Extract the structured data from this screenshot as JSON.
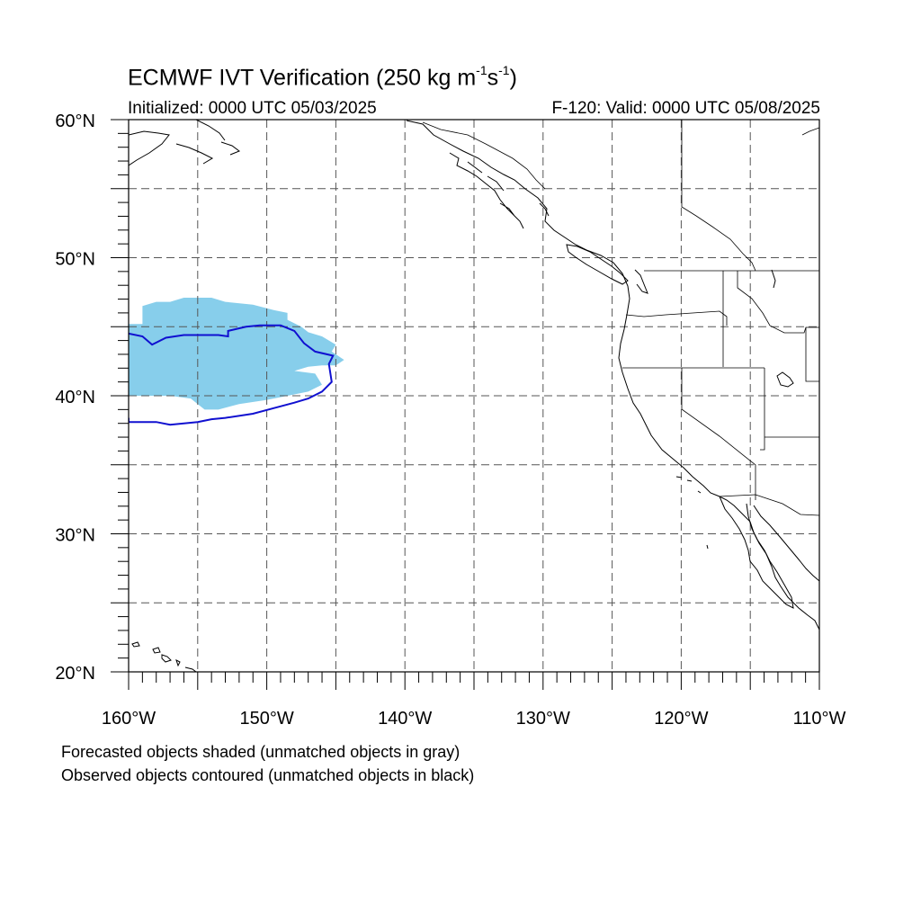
{
  "title": {
    "prefix": "ECMWF IVT Verification (250 kg m",
    "sup1": "-1",
    "mid": "s",
    "sup2": "-1",
    "suffix": ")"
  },
  "initialized": "Initialized: 0000 UTC 05/03/2025",
  "valid": "F-120: Valid: 0000 UTC 05/08/2025",
  "lat_labels": [
    "60°N",
    "50°N",
    "40°N",
    "30°N",
    "20°N"
  ],
  "lon_labels": [
    "160°W",
    "150°W",
    "140°W",
    "130°W",
    "120°W",
    "110°W"
  ],
  "notes": [
    "Forecasted objects shaded (unmatched objects in gray)",
    "Observed objects contoured (unmatched objects in black)"
  ],
  "colors": {
    "forecast_matched": "#87ceeb",
    "observed_matched": "#1010d0",
    "coastline": "#000000",
    "grid": "#555555"
  },
  "chart_data": {
    "type": "map",
    "projection": "cylindrical-equidistant",
    "lon_range": [
      -160,
      -110
    ],
    "lat_range": [
      20,
      60
    ],
    "gridlines": "dashed every 5 degrees",
    "forecast_object": {
      "status": "matched",
      "shading": "forecast_matched",
      "outline": [
        [
          -160,
          45.2
        ],
        [
          -159,
          45.2
        ],
        [
          -159,
          46.5
        ],
        [
          -158,
          46.8
        ],
        [
          -157,
          46.8
        ],
        [
          -156,
          47.1
        ],
        [
          -154,
          47.1
        ],
        [
          -153,
          46.8
        ],
        [
          -151,
          46.6
        ],
        [
          -149.5,
          46.2
        ],
        [
          -148.5,
          46
        ],
        [
          -148.5,
          45.5
        ],
        [
          -147.5,
          45
        ],
        [
          -147,
          44.6
        ],
        [
          -146,
          44.3
        ],
        [
          -145,
          43.7
        ],
        [
          -145.3,
          43.2
        ],
        [
          -144.4,
          42.6
        ],
        [
          -145,
          42.2
        ],
        [
          -146,
          42.2
        ],
        [
          -147,
          42.1
        ],
        [
          -148,
          41.8
        ],
        [
          -146.5,
          41.6
        ],
        [
          -146,
          40.8
        ],
        [
          -147,
          40.3
        ],
        [
          -148,
          40.1
        ],
        [
          -150,
          39.7
        ],
        [
          -152,
          39.4
        ],
        [
          -153.5,
          39.0
        ],
        [
          -154.5,
          39.0
        ],
        [
          -155.5,
          39.8
        ],
        [
          -157,
          40.0
        ],
        [
          -158.5,
          40.0
        ],
        [
          -160,
          40.0
        ]
      ]
    },
    "observed_object": {
      "status": "matched",
      "contour": "observed_matched",
      "outline": [
        [
          -160,
          44.5
        ],
        [
          -159,
          44.3
        ],
        [
          -158.3,
          43.7
        ],
        [
          -157.3,
          44.2
        ],
        [
          -156,
          44.4
        ],
        [
          -155,
          44.4
        ],
        [
          -153.5,
          44.4
        ],
        [
          -152.8,
          44.3
        ],
        [
          -152.8,
          44.7
        ],
        [
          -151.5,
          45.0
        ],
        [
          -150.5,
          45.1
        ],
        [
          -149,
          45.1
        ],
        [
          -148,
          44.7
        ],
        [
          -147.3,
          43.8
        ],
        [
          -146.5,
          43.2
        ],
        [
          -145.2,
          42.9
        ],
        [
          -145.5,
          42.3
        ],
        [
          -145.3,
          41.0
        ],
        [
          -146,
          40.3
        ],
        [
          -147,
          39.8
        ],
        [
          -148,
          39.5
        ],
        [
          -149.5,
          39.1
        ],
        [
          -151,
          38.7
        ],
        [
          -153,
          38.4
        ],
        [
          -154,
          38.3
        ],
        [
          -155,
          38.1
        ],
        [
          -157,
          37.9
        ],
        [
          -158,
          38.1
        ],
        [
          -160,
          38.1
        ],
        [
          -160,
          38.4
        ]
      ]
    }
  }
}
